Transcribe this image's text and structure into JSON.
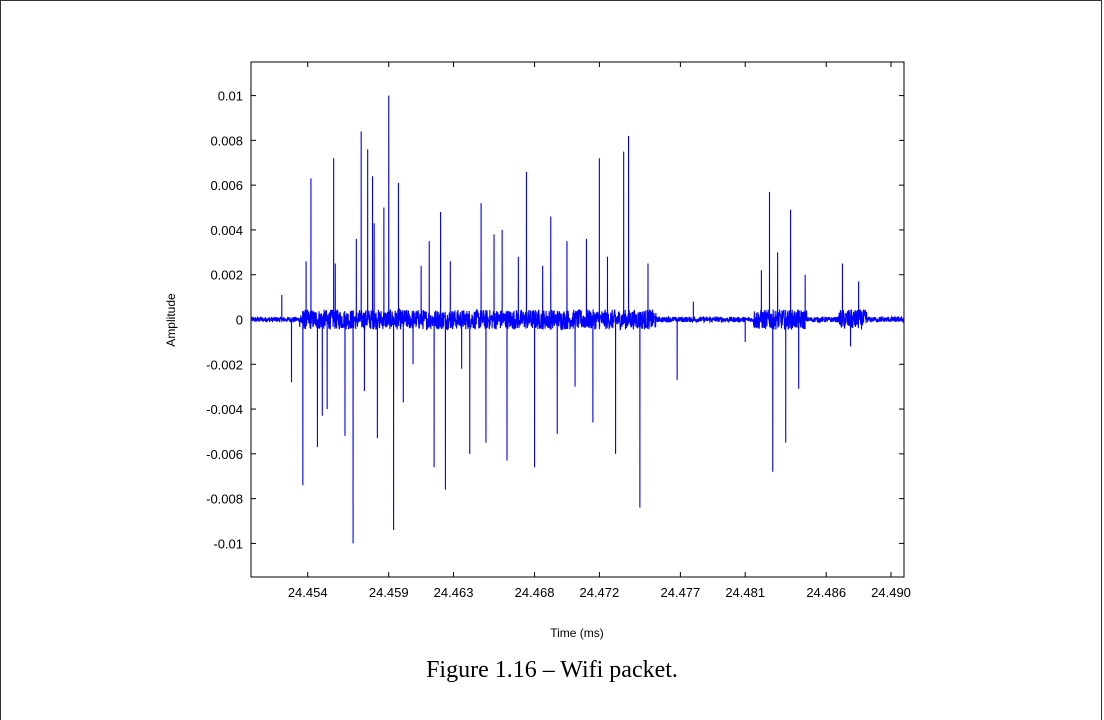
{
  "figure": {
    "caption": "Figure 1.16 – Wifi packet."
  },
  "chart_data": {
    "type": "line",
    "title": "",
    "xlabel": "Time (ms)",
    "ylabel": "Amplitude",
    "xlim": [
      24.4505,
      24.4908
    ],
    "ylim": [
      -0.0115,
      0.0115
    ],
    "xticks": [
      24.454,
      24.459,
      24.463,
      24.468,
      24.472,
      24.477,
      24.481,
      24.486,
      24.49
    ],
    "xtick_labels": [
      "24.454",
      "24.459",
      "24.463",
      "24.468",
      "24.472",
      "24.477",
      "24.481",
      "24.486",
      "24.490"
    ],
    "yticks": [
      0.01,
      0.008,
      0.006,
      0.004,
      0.002,
      0,
      -0.002,
      -0.004,
      -0.006,
      -0.008,
      -0.01
    ],
    "ytick_labels": [
      "0.01",
      "0.008",
      "0.006",
      "0.004",
      "0.002",
      "0",
      "-0.002",
      "-0.004",
      "-0.006",
      "-0.008",
      "-0.01"
    ],
    "grid": false,
    "line_color": "#0000ff",
    "peaks": [
      {
        "x": 24.4524,
        "y": 0.0011
      },
      {
        "x": 24.453,
        "y": -0.0028
      },
      {
        "x": 24.4537,
        "y": -0.0074
      },
      {
        "x": 24.4539,
        "y": 0.0026
      },
      {
        "x": 24.4542,
        "y": 0.0063
      },
      {
        "x": 24.4546,
        "y": -0.0057
      },
      {
        "x": 24.4549,
        "y": -0.0043
      },
      {
        "x": 24.4552,
        "y": -0.004
      },
      {
        "x": 24.4556,
        "y": 0.0072
      },
      {
        "x": 24.4557,
        "y": 0.0025
      },
      {
        "x": 24.4563,
        "y": -0.0052
      },
      {
        "x": 24.4568,
        "y": -0.01
      },
      {
        "x": 24.457,
        "y": 0.0036
      },
      {
        "x": 24.4573,
        "y": 0.0084
      },
      {
        "x": 24.4575,
        "y": -0.0032
      },
      {
        "x": 24.4577,
        "y": 0.0076
      },
      {
        "x": 24.458,
        "y": 0.0064
      },
      {
        "x": 24.4581,
        "y": 0.0043
      },
      {
        "x": 24.4583,
        "y": -0.0053
      },
      {
        "x": 24.4587,
        "y": 0.005
      },
      {
        "x": 24.459,
        "y": 0.01
      },
      {
        "x": 24.4593,
        "y": -0.0094
      },
      {
        "x": 24.4596,
        "y": 0.0061
      },
      {
        "x": 24.4599,
        "y": -0.0037
      },
      {
        "x": 24.4605,
        "y": -0.002
      },
      {
        "x": 24.461,
        "y": 0.0024
      },
      {
        "x": 24.4615,
        "y": 0.0035
      },
      {
        "x": 24.4618,
        "y": -0.0066
      },
      {
        "x": 24.4622,
        "y": 0.0048
      },
      {
        "x": 24.4625,
        "y": -0.0076
      },
      {
        "x": 24.4628,
        "y": 0.0026
      },
      {
        "x": 24.4635,
        "y": -0.0022
      },
      {
        "x": 24.464,
        "y": -0.006
      },
      {
        "x": 24.4647,
        "y": 0.0052
      },
      {
        "x": 24.465,
        "y": -0.0055
      },
      {
        "x": 24.4655,
        "y": 0.0038
      },
      {
        "x": 24.466,
        "y": 0.004
      },
      {
        "x": 24.4663,
        "y": -0.0063
      },
      {
        "x": 24.467,
        "y": 0.0028
      },
      {
        "x": 24.4675,
        "y": 0.0066
      },
      {
        "x": 24.468,
        "y": -0.0066
      },
      {
        "x": 24.4685,
        "y": 0.0024
      },
      {
        "x": 24.469,
        "y": 0.0046
      },
      {
        "x": 24.4694,
        "y": -0.0051
      },
      {
        "x": 24.47,
        "y": 0.0035
      },
      {
        "x": 24.4705,
        "y": -0.003
      },
      {
        "x": 24.4712,
        "y": 0.0036
      },
      {
        "x": 24.4716,
        "y": -0.0046
      },
      {
        "x": 24.472,
        "y": 0.0072
      },
      {
        "x": 24.4725,
        "y": 0.0028
      },
      {
        "x": 24.473,
        "y": -0.006
      },
      {
        "x": 24.4735,
        "y": 0.0075
      },
      {
        "x": 24.4738,
        "y": 0.0082
      },
      {
        "x": 24.4745,
        "y": -0.0084
      },
      {
        "x": 24.475,
        "y": 0.0025
      },
      {
        "x": 24.4768,
        "y": -0.0027
      },
      {
        "x": 24.4778,
        "y": 0.0008
      },
      {
        "x": 24.481,
        "y": -0.001
      },
      {
        "x": 24.482,
        "y": 0.0022
      },
      {
        "x": 24.4825,
        "y": 0.0057
      },
      {
        "x": 24.4827,
        "y": -0.0068
      },
      {
        "x": 24.483,
        "y": 0.003
      },
      {
        "x": 24.4835,
        "y": -0.0055
      },
      {
        "x": 24.4838,
        "y": 0.0049
      },
      {
        "x": 24.4843,
        "y": -0.0031
      },
      {
        "x": 24.4847,
        "y": 0.002
      },
      {
        "x": 24.487,
        "y": 0.0025
      },
      {
        "x": 24.4875,
        "y": -0.0012
      },
      {
        "x": 24.488,
        "y": 0.0017
      }
    ]
  }
}
